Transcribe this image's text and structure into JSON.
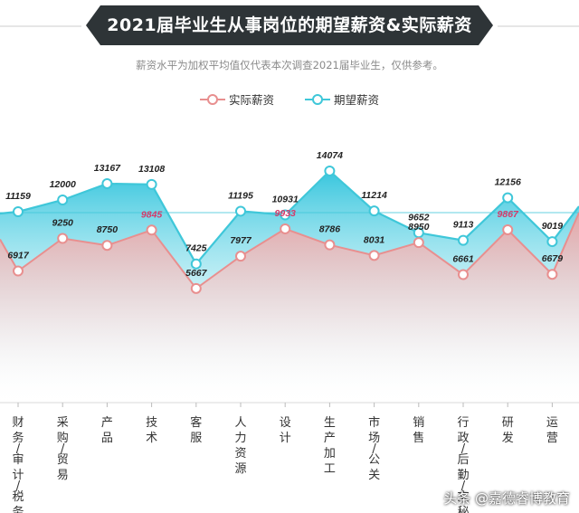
{
  "title": "2021届毕业生从事岗位的期望薪资&实际薪资",
  "subtitle": "薪资水平为加权平均值仅代表本次调查2021届毕业生，仅供参考。",
  "watermark": "头条 @嘉德睿博教育",
  "colors": {
    "actual": "#e88f8f",
    "expected": "#3fc7d9",
    "highlight_label": "#d43a6a",
    "banner": "#2e3437"
  },
  "chart_data": {
    "type": "line",
    "categories": [
      "财务/审计/税务",
      "采购/贸易",
      "产品",
      "技术",
      "客服",
      "人力资源",
      "设计",
      "生产加工",
      "市场/公关",
      "销售",
      "行政/后勤/文秘",
      "研发",
      "运营"
    ],
    "series": [
      {
        "name": "实际薪资",
        "values": [
          6917,
          9250,
          8750,
          9845,
          5667,
          7977,
          9933,
          8786,
          8031,
          8950,
          6661,
          9867,
          6679
        ]
      },
      {
        "name": "期望薪资",
        "values": [
          11159,
          12000,
          13167,
          13108,
          7425,
          11195,
          10931,
          14074,
          11214,
          9652,
          9113,
          12156,
          9019
        ]
      }
    ],
    "highlighted_actual_labels": [
      "技术",
      "设计",
      "研发"
    ],
    "legend": [
      "实际薪资",
      "期望薪资"
    ],
    "legend_position": "top-center",
    "grid": false
  }
}
